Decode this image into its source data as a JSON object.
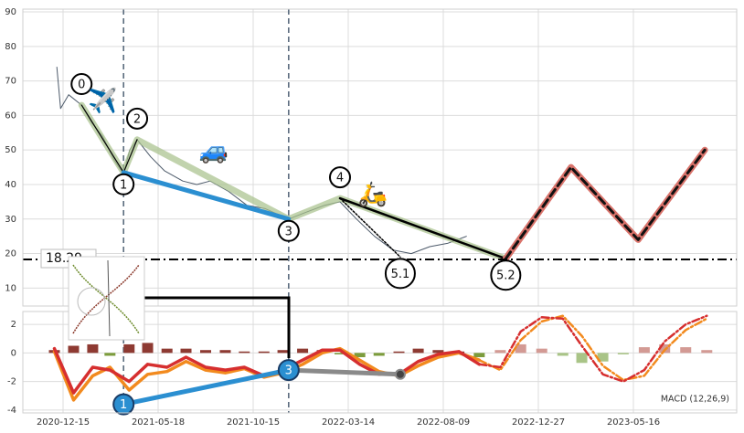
{
  "chart_data": {
    "type": "line",
    "xlim": [
      "2020-10-11",
      "2023-10-15"
    ],
    "xticks": [
      "2020-12-15",
      "2021-05-18",
      "2021-10-15",
      "2022-03-14",
      "2022-08-09",
      "2022-12-27",
      "2023-05-16"
    ],
    "grid": true,
    "vlines": [
      "2021-03-23",
      "2021-12-10"
    ],
    "price_panel": {
      "ylim": [
        4.8,
        90.8
      ],
      "yticks": [
        10,
        20,
        30,
        40,
        50,
        60,
        70,
        80,
        90
      ],
      "price": {
        "color": "#4d5a6a",
        "x": [
          "2020-12-05",
          "2020-12-11",
          "2020-12-24",
          "2021-01-14",
          "2021-01-30",
          "2021-02-17",
          "2021-03-08",
          "2021-03-23",
          "2021-04-02",
          "2021-04-14",
          "2021-05-06",
          "2021-05-28",
          "2021-06-26",
          "2021-07-18",
          "2021-08-08",
          "2021-09-06",
          "2021-10-05",
          "2021-11-03",
          "2021-12-10",
          "2022-01-07",
          "2022-02-05",
          "2022-03-01",
          "2022-03-27",
          "2022-04-24",
          "2022-05-23",
          "2022-06-20",
          "2022-07-19",
          "2022-08-16",
          "2022-09-12"
        ],
        "values": [
          74,
          62,
          66,
          63,
          58,
          54,
          47,
          43,
          50,
          53,
          48,
          44,
          41,
          40,
          41,
          38,
          34,
          33,
          30,
          32,
          34,
          35,
          30,
          25,
          21,
          20,
          22,
          23,
          25
        ]
      },
      "waves": {
        "color": "#a6c08a",
        "labels": [
          "0",
          "1",
          "2",
          "3",
          "4",
          "5.1",
          "5.2"
        ],
        "x": [
          "2021-01-14",
          "2021-03-23",
          "2021-04-14",
          "2021-12-10",
          "2022-03-01",
          "2022-06-03",
          "2022-11-09"
        ],
        "values": [
          63,
          43.5,
          53,
          30,
          36,
          19,
          18.5
        ]
      },
      "trend": {
        "color": "#2b8fd1",
        "x": [
          "2021-03-23",
          "2021-12-10"
        ],
        "values": [
          43.5,
          30
        ]
      },
      "projection": {
        "color": "#d9736b",
        "x": [
          "2022-11-09",
          "2023-02-13",
          "2023-05-23",
          "2023-08-29"
        ],
        "values": [
          18.5,
          45,
          24,
          50
        ]
      },
      "hline": {
        "value": 18.29,
        "value_label": "18.29"
      },
      "icons": [
        {
          "text": "✈️",
          "x": "2021-02-17",
          "y": 64
        },
        {
          "text": "🚙",
          "x": "2021-08-14",
          "y": 49.5
        },
        {
          "text": "🛵",
          "x": "2022-04-21",
          "y": 37
        }
      ]
    },
    "macd_panel": {
      "label": "MACD (12,26,9)",
      "ylim": [
        -4.2,
        2.9
      ],
      "yticks": [
        -4,
        -2,
        0,
        2
      ],
      "x": [
        "2020-12-01",
        "2021-01-01",
        "2021-02-01",
        "2021-03-01",
        "2021-04-01",
        "2021-05-01",
        "2021-06-01",
        "2021-07-01",
        "2021-08-01",
        "2021-09-01",
        "2021-10-01",
        "2021-11-01",
        "2021-12-01",
        "2022-01-01",
        "2022-02-01",
        "2022-03-01",
        "2022-04-01",
        "2022-05-01",
        "2022-06-01",
        "2022-07-01",
        "2022-08-01",
        "2022-09-01",
        "2022-10-01",
        "2022-11-01",
        "2022-12-01",
        "2023-01-01",
        "2023-02-01",
        "2023-03-01",
        "2023-04-01",
        "2023-05-01",
        "2023-06-01",
        "2023-07-01",
        "2023-08-01",
        "2023-09-01"
      ],
      "series": [
        {
          "kind": "bar",
          "style": "solid",
          "color": "#8e3a32",
          "negative_color": "#7c9c3c",
          "values": [
            0.2,
            0.5,
            0.6,
            -0.2,
            0.6,
            0.7,
            0.3,
            0.3,
            0.2,
            0.2,
            0.1,
            0.1,
            0.2,
            0.3,
            0.2,
            -0.1,
            -0.3,
            -0.2,
            0.1,
            0.3,
            0.2,
            0.1,
            -0.3,
            null,
            null,
            null,
            null,
            null,
            null,
            null,
            null,
            null,
            null,
            null
          ]
        },
        {
          "kind": "bar",
          "style": "light",
          "color": "#d39a94",
          "negative_color": "#a9c487",
          "values": [
            null,
            null,
            null,
            null,
            null,
            null,
            null,
            null,
            null,
            null,
            null,
            null,
            null,
            null,
            null,
            null,
            null,
            null,
            null,
            null,
            null,
            null,
            null,
            0.2,
            0.6,
            0.3,
            -0.2,
            -0.7,
            -0.6,
            -0.1,
            0.4,
            0.6,
            0.4,
            0.2
          ]
        },
        {
          "kind": "line",
          "style": "solid",
          "color": "#f28a1e",
          "values": [
            0.1,
            -3.3,
            -1.6,
            -1.0,
            -2.6,
            -1.5,
            -1.3,
            -0.6,
            -1.2,
            -1.4,
            -1.1,
            -1.7,
            -1.4,
            -0.8,
            0.0,
            0.3,
            -0.5,
            -1.3,
            -1.6,
            -0.9,
            -0.3,
            0.0,
            -0.5,
            null,
            null,
            null,
            null,
            null,
            null,
            null,
            null,
            null,
            null,
            null
          ]
        },
        {
          "kind": "line",
          "style": "solid",
          "color": "#d62f2f",
          "values": [
            0.3,
            -2.8,
            -1.0,
            -1.2,
            -2.0,
            -0.8,
            -1.0,
            -0.3,
            -1.0,
            -1.2,
            -1.0,
            -1.6,
            -1.2,
            -0.5,
            0.2,
            0.2,
            -0.8,
            -1.5,
            -1.5,
            -0.6,
            -0.1,
            0.1,
            -0.8,
            null,
            null,
            null,
            null,
            null,
            null,
            null,
            null,
            null,
            null,
            null
          ]
        },
        {
          "kind": "line",
          "style": "dashdot",
          "color": "#f28a1e",
          "values": [
            null,
            null,
            null,
            null,
            null,
            null,
            null,
            null,
            null,
            null,
            null,
            null,
            null,
            null,
            null,
            null,
            null,
            null,
            null,
            null,
            null,
            null,
            -0.5,
            -1.2,
            0.9,
            2.2,
            2.6,
            1.2,
            -0.9,
            -1.9,
            -1.6,
            0.2,
            1.6,
            2.4
          ]
        },
        {
          "kind": "line",
          "style": "dashdot",
          "color": "#d62f2f",
          "values": [
            null,
            null,
            null,
            null,
            null,
            null,
            null,
            null,
            null,
            null,
            null,
            null,
            null,
            null,
            null,
            null,
            null,
            null,
            null,
            null,
            null,
            null,
            -0.8,
            -1.0,
            1.5,
            2.5,
            2.4,
            0.5,
            -1.5,
            -2.0,
            -1.2,
            0.8,
            2.0,
            2.6
          ]
        }
      ],
      "markers": {
        "color": "#2b8fd1",
        "labels": [
          "1",
          "3"
        ],
        "x": [
          "2021-03-23",
          "2021-12-10"
        ],
        "values": [
          -3.6,
          -1.2
        ]
      },
      "link": {
        "color": "#8a8a8a",
        "x": [
          "2021-12-10",
          "2022-06-03"
        ],
        "values": [
          -1.2,
          -1.5
        ]
      }
    }
  }
}
